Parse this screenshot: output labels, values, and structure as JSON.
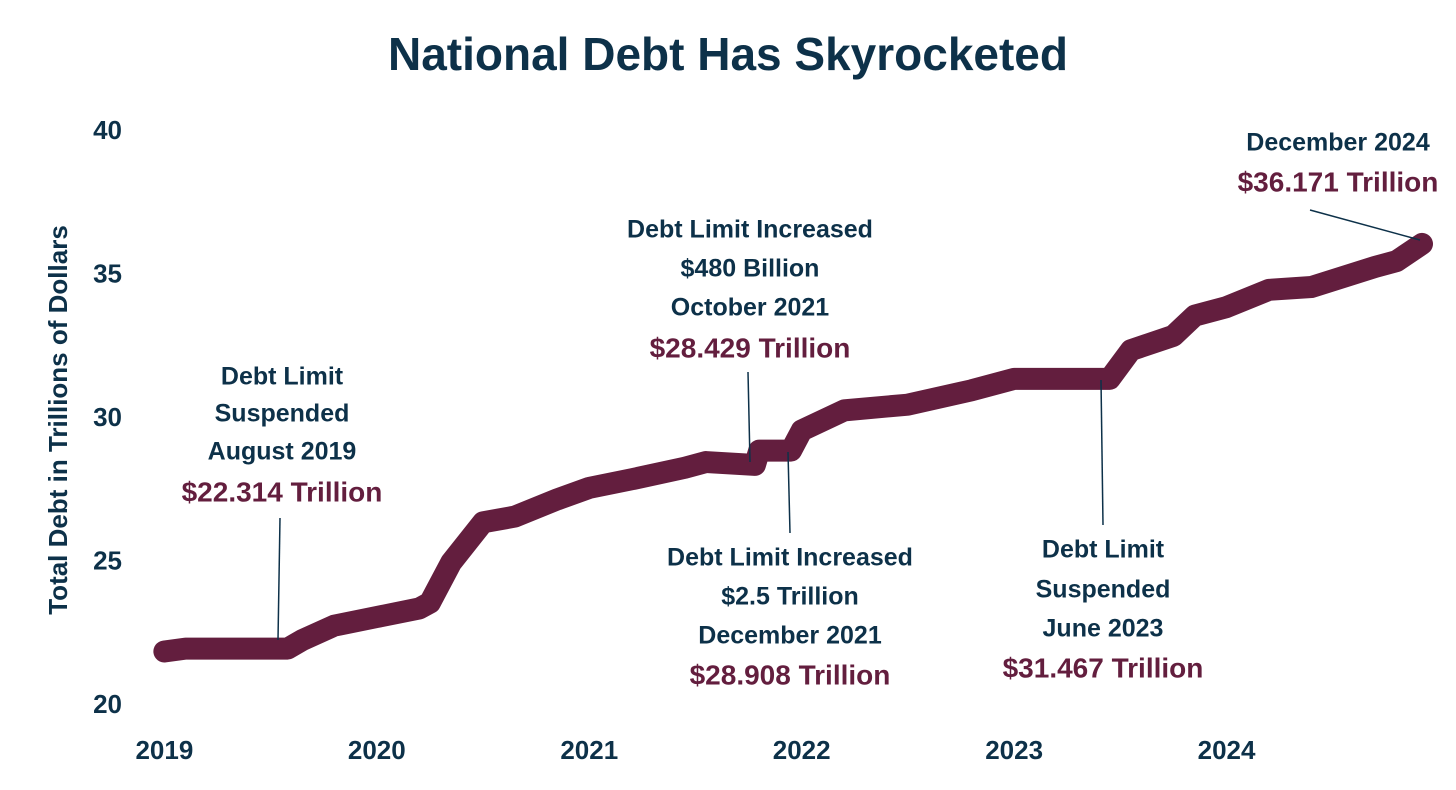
{
  "chart_data": {
    "type": "line",
    "title": "National Debt Has Skyrocketed",
    "y_label": "Total Debt in Trillions of Dollars",
    "x": [
      2019.0,
      2019.1,
      2019.58,
      2019.65,
      2019.8,
      2020.0,
      2020.2,
      2020.25,
      2020.35,
      2020.5,
      2020.65,
      2020.85,
      2021.0,
      2021.2,
      2021.45,
      2021.55,
      2021.78,
      2021.8,
      2021.95,
      2022.0,
      2022.2,
      2022.5,
      2022.8,
      2023.0,
      2023.1,
      2023.45,
      2023.55,
      2023.75,
      2023.85,
      2024.0,
      2024.2,
      2024.4,
      2024.7,
      2024.8,
      2024.92
    ],
    "series": [
      {
        "name": "Total Debt",
        "color": "#631e3e",
        "values": [
          21.9,
          22.0,
          22.0,
          22.3,
          22.8,
          23.1,
          23.4,
          23.6,
          25.0,
          26.4,
          26.6,
          27.2,
          27.6,
          27.9,
          28.3,
          28.5,
          28.4,
          28.9,
          28.9,
          29.6,
          30.3,
          30.5,
          31.0,
          31.4,
          31.4,
          31.4,
          32.4,
          32.9,
          33.6,
          33.9,
          34.5,
          34.6,
          35.3,
          35.5,
          36.1
        ]
      }
    ],
    "xlim": [
      2018.97,
      2024.92
    ],
    "xticks": [
      2019,
      2020,
      2021,
      2022,
      2023,
      2024
    ],
    "ylim": [
      20,
      40
    ],
    "yticks": [
      20,
      25,
      30,
      35,
      40
    ],
    "grid": false,
    "annotations": [
      {
        "lines": [
          "Debt Limit",
          "Suspended",
          "August 2019"
        ],
        "value_label": "$22.314 Trillion"
      },
      {
        "lines": [
          "Debt Limit Increased",
          "$480 Billion",
          "October 2021"
        ],
        "value_label": "$28.429 Trillion"
      },
      {
        "lines": [
          "Debt Limit Increased",
          "$2.5 Trillion",
          "December 2021"
        ],
        "value_label": "$28.908 Trillion"
      },
      {
        "lines": [
          "Debt Limit",
          "Suspended",
          "June 2023"
        ],
        "value_label": "$31.467 Trillion"
      },
      {
        "lines": [
          "December 2024"
        ],
        "value_label": "$36.171 Trillion"
      }
    ]
  }
}
